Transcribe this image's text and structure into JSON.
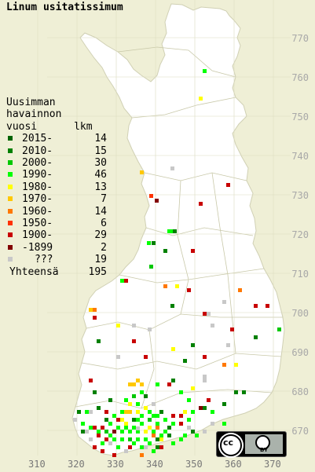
{
  "title": "Linum usitatissimum",
  "legend": {
    "heading": [
      "Uusimman",
      "havainnon",
      "vuosi      lkm"
    ],
    "entries": [
      {
        "label": "2015-",
        "count": "14",
        "color": "#006400"
      },
      {
        "label": "2010-",
        "count": "15",
        "color": "#008000"
      },
      {
        "label": "2000-",
        "count": "30",
        "color": "#00c800"
      },
      {
        "label": "1990-",
        "count": "46",
        "color": "#00ff00"
      },
      {
        "label": "1980-",
        "count": "13",
        "color": "#ffff00"
      },
      {
        "label": "1970-",
        "count": "7",
        "color": "#ffc800"
      },
      {
        "label": "1960-",
        "count": "14",
        "color": "#ff7800"
      },
      {
        "label": "1950-",
        "count": "6",
        "color": "#ff3200"
      },
      {
        "label": "1900-",
        "count": "29",
        "color": "#c80000"
      },
      {
        "label": "-1899",
        "count": "2",
        "color": "#820000"
      },
      {
        "label": "???",
        "count": "19",
        "color": "#c8c8c8"
      }
    ],
    "total_label": "Yhteensä",
    "total_count": "195"
  },
  "grid_y_labels": [
    "770",
    "760",
    "750",
    "740",
    "730",
    "720",
    "710",
    "700",
    "690",
    "680",
    "670"
  ],
  "grid_x_labels": [
    "310",
    "320",
    "330",
    "340",
    "350",
    "360",
    "370"
  ],
  "license_badge": {
    "cc": "cc",
    "by": "BY"
  },
  "colors": {
    "background": "#efefd6",
    "land": "#ffffff",
    "grid": "#d8d8b8",
    "border": "#c8c8a8"
  }
}
